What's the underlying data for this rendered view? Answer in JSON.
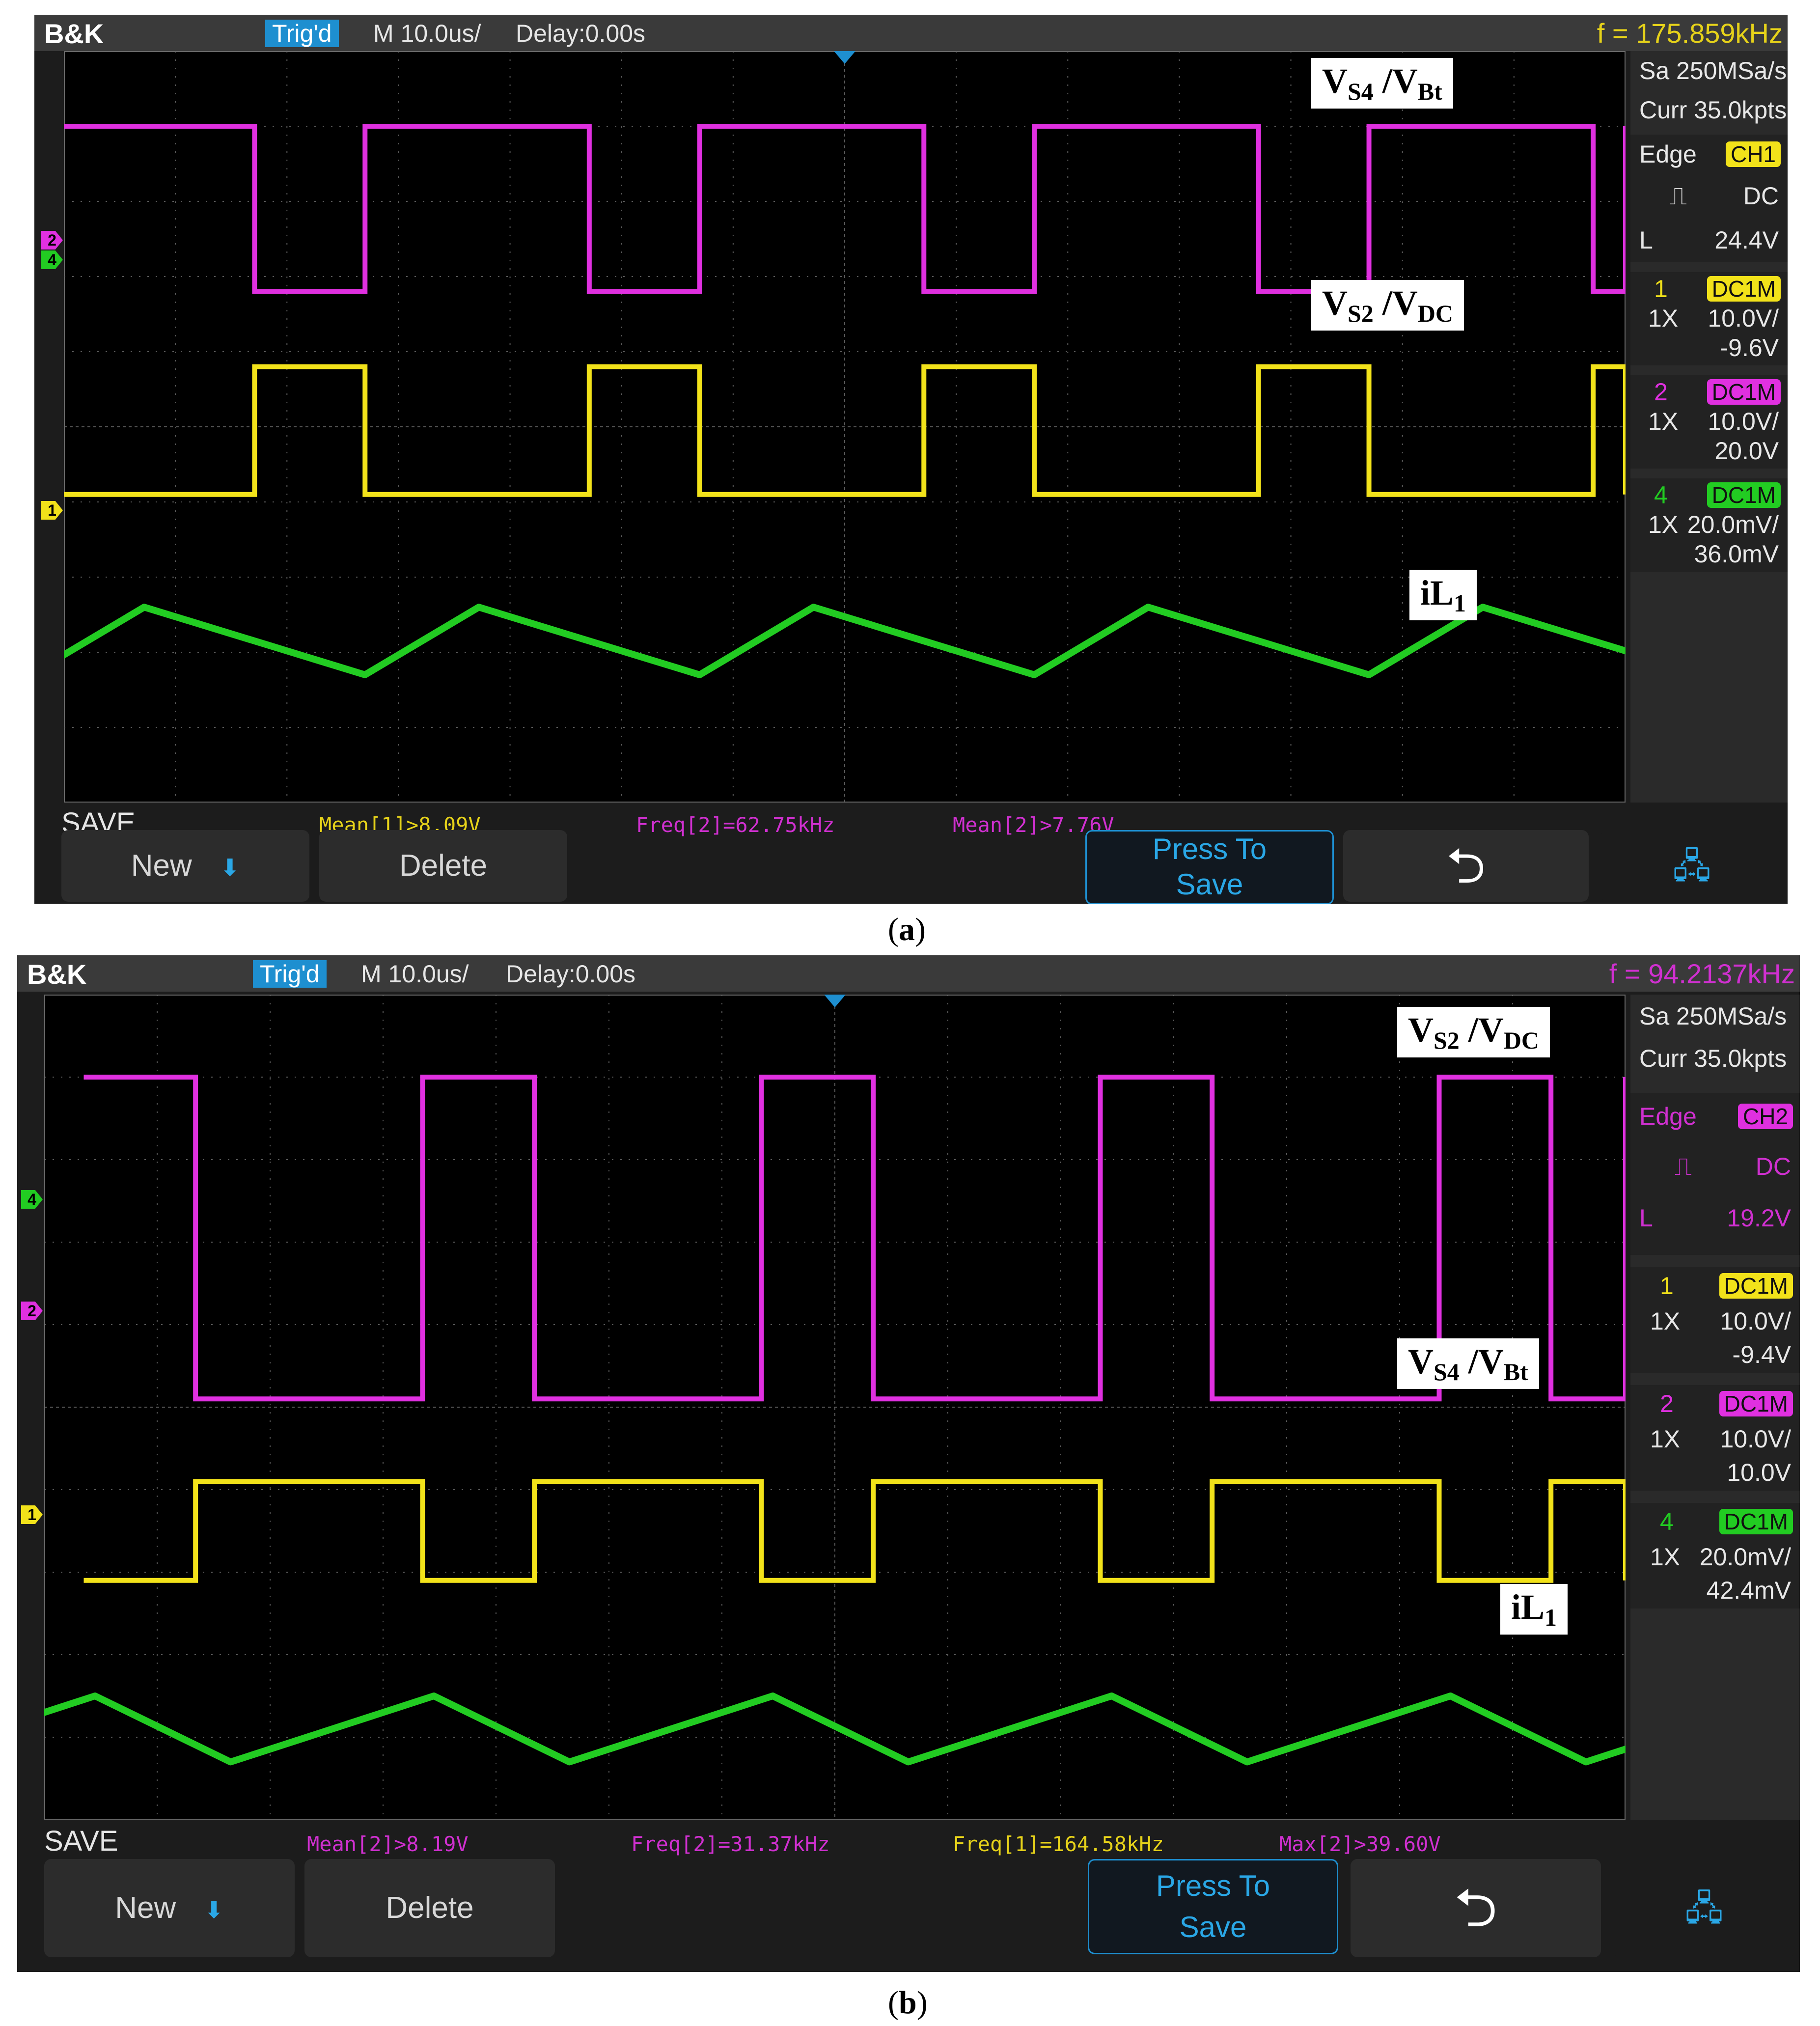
{
  "panels": [
    {
      "brand": "B&K",
      "trig_status": "Trig'd",
      "timebase": "M 10.0us/",
      "delay": "Delay:0.00s",
      "frequency": "f = 175.859kHz",
      "frequency_color": "#e6d21a",
      "sample_rate": "Sa 250MSa/s",
      "memory_depth": "Curr 35.0kpts",
      "trigger": {
        "type": "Edge",
        "source": "CH1",
        "coupling": "DC",
        "level_label": "L",
        "level": "24.4V",
        "source_color": "#f2e21a",
        "text_color": "#e8e8e8"
      },
      "channels": [
        {
          "number": "1",
          "coupling": "DC1M",
          "probe": "1X",
          "scale": "10.0V/",
          "offset": "-9.6V",
          "color": "#f2e21a"
        },
        {
          "number": "2",
          "coupling": "DC1M",
          "probe": "1X",
          "scale": "10.0V/",
          "offset": "20.0V",
          "color": "#e030e0"
        },
        {
          "number": "4",
          "coupling": "DC1M",
          "probe": "1X",
          "scale": "20.0mV/",
          "offset": "36.0mV",
          "color": "#22cc22"
        }
      ],
      "save_label": "SAVE",
      "measurements": [
        {
          "text": "Mean[1]>8.09V",
          "color": "#e6d21a"
        },
        {
          "text": "Freq[2]=62.75kHz",
          "color": "#d030d0"
        },
        {
          "text": "Mean[2]>7.76V",
          "color": "#d030d0"
        }
      ],
      "softkeys": {
        "new": "New",
        "delete": "Delete",
        "press_to_save_1": "Press To",
        "press_to_save_2": "Save",
        "back_icon": "return-arrow-icon",
        "usb_icon": "usb-network-icon"
      },
      "annotations": {
        "upper": {
          "main": "V",
          "sub1": "S4",
          "sep": " /V",
          "sub2": "Bt"
        },
        "middle": {
          "main": "V",
          "sub1": "S2",
          "sep": " /V",
          "sub2": "DC"
        },
        "lower": {
          "main": "iL",
          "sub1": "1"
        }
      },
      "caption": {
        "open": "(",
        "letter": "a",
        "close": ")"
      },
      "waveforms": {
        "ch2_magenta": {
          "high_level_div": 1.0,
          "low_level_div": 3.2,
          "period_div": 3.0,
          "duty_high": 0.67
        },
        "ch4_yellow_upper": {
          "level_div": 4.2
        },
        "ch1_yellow": {
          "level_div": 5.9
        },
        "ch4_green_triangle": {
          "peak_div": 7.4,
          "valley_div": 8.3
        }
      }
    },
    {
      "brand": "B&K",
      "trig_status": "Trig'd",
      "timebase": "M 10.0us/",
      "delay": "Delay:0.00s",
      "frequency": "f = 94.2137kHz",
      "frequency_color": "#d030d0",
      "sample_rate": "Sa 250MSa/s",
      "memory_depth": "Curr 35.0kpts",
      "trigger": {
        "type": "Edge",
        "source": "CH2",
        "coupling": "DC",
        "level_label": "L",
        "level": "19.2V",
        "source_color": "#e030e0",
        "text_color": "#d030d0"
      },
      "channels": [
        {
          "number": "1",
          "coupling": "DC1M",
          "probe": "1X",
          "scale": "10.0V/",
          "offset": "-9.4V",
          "color": "#f2e21a"
        },
        {
          "number": "2",
          "coupling": "DC1M",
          "probe": "1X",
          "scale": "10.0V/",
          "offset": "10.0V",
          "color": "#e030e0"
        },
        {
          "number": "4",
          "coupling": "DC1M",
          "probe": "1X",
          "scale": "20.0mV/",
          "offset": "42.4mV",
          "color": "#22cc22"
        }
      ],
      "save_label": "SAVE",
      "measurements": [
        {
          "text": "Mean[2]>8.19V",
          "color": "#d030d0"
        },
        {
          "text": "Freq[2]=31.37kHz",
          "color": "#d030d0"
        },
        {
          "text": "Freq[1]=164.58kHz",
          "color": "#e6d21a"
        },
        {
          "text": "Max[2]>39.60V",
          "color": "#d030d0"
        }
      ],
      "softkeys": {
        "new": "New",
        "delete": "Delete",
        "press_to_save_1": "Press To",
        "press_to_save_2": "Save",
        "back_icon": "return-arrow-icon",
        "usb_icon": "usb-network-icon"
      },
      "annotations": {
        "upper": {
          "main": "V",
          "sub1": "S2",
          "sep": " /V",
          "sub2": "DC"
        },
        "middle": {
          "main": "V",
          "sub1": "S4",
          "sep": " /V",
          "sub2": "Bt"
        },
        "lower": {
          "main": "iL",
          "sub1": "1"
        }
      },
      "caption": {
        "open": "(",
        "letter": "b",
        "close": ")"
      },
      "waveforms": {
        "ch2_magenta": {
          "high_level_div": 1.0,
          "low_level_div": 4.9,
          "period_div": 3.0,
          "duty_high": 0.33
        },
        "ch1_yellow_upper": {
          "level_div": 5.9
        },
        "ch1_yellow": {
          "level_div": 7.1
        },
        "ch4_green_triangle": {
          "peak_div": 8.5,
          "valley_div": 9.3
        }
      }
    }
  ]
}
